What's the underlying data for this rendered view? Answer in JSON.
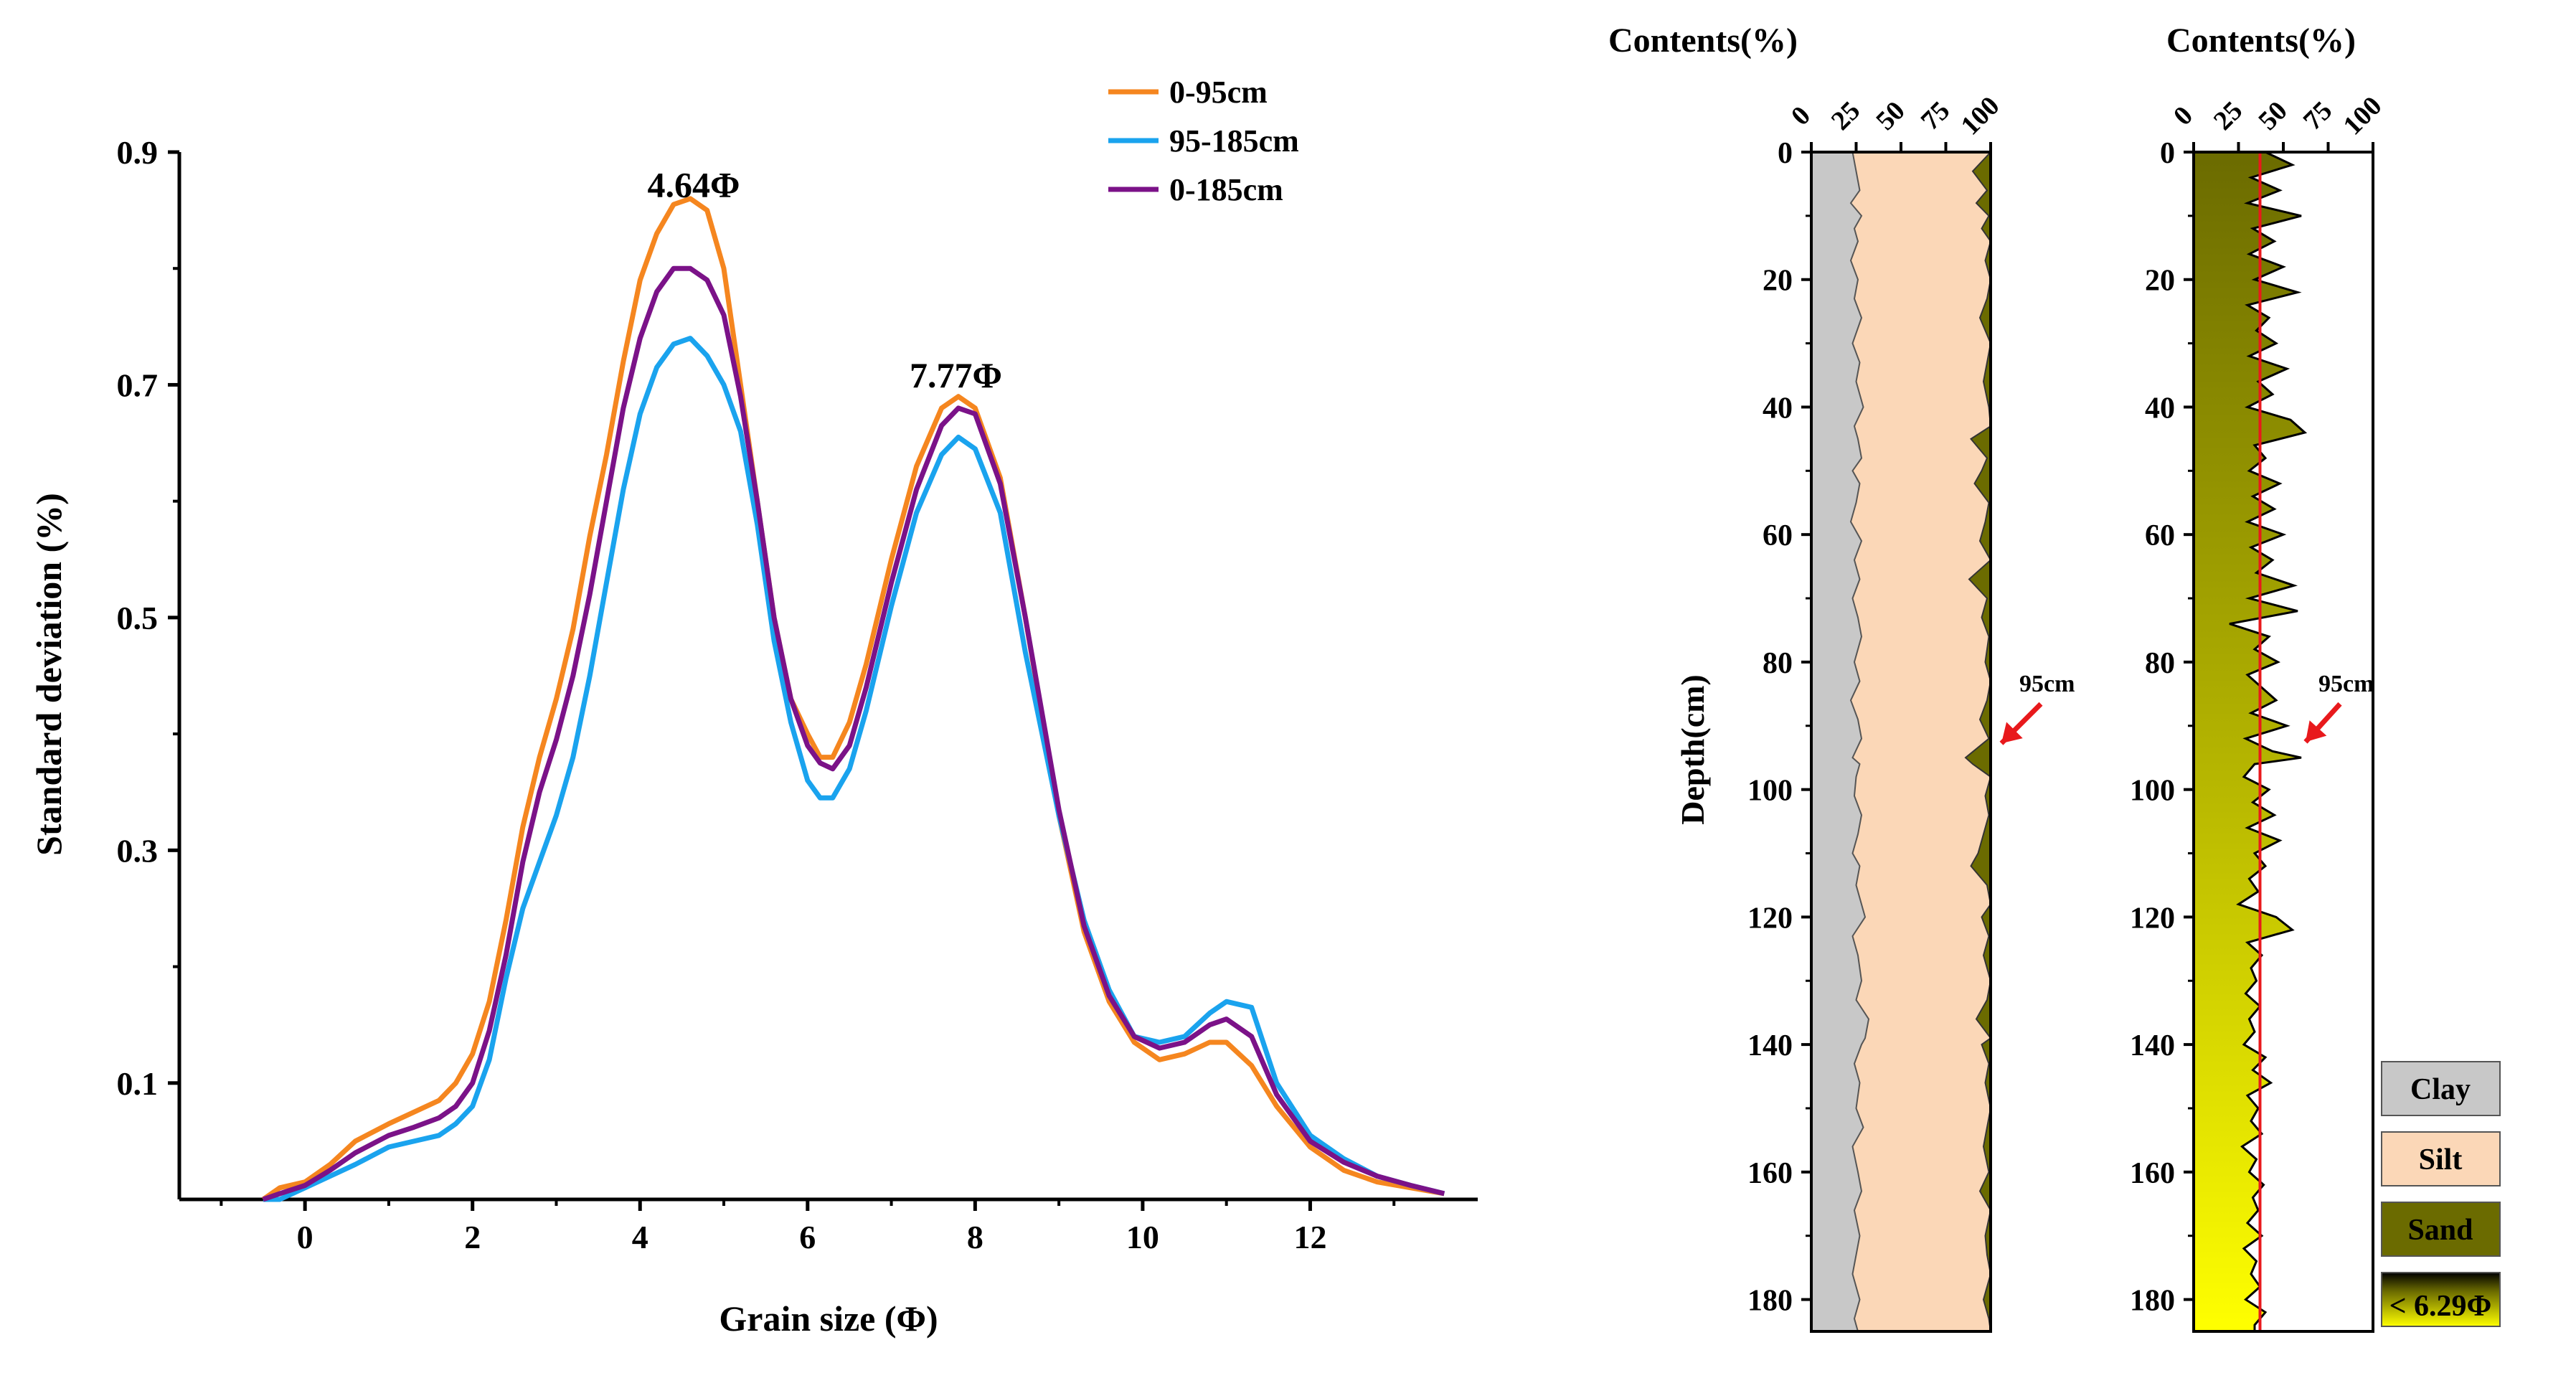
{
  "chart_data": [
    {
      "type": "line",
      "title": "",
      "xlabel": "Grain size (Φ)",
      "ylabel": "Standard deviation (%)",
      "xlim": [
        -1.5,
        14
      ],
      "ylim": [
        0,
        0.9
      ],
      "xticks": [
        0,
        2,
        4,
        6,
        8,
        10,
        12
      ],
      "yticks": [
        0.1,
        0.3,
        0.5,
        0.7,
        0.9
      ],
      "legend_position": "top-right",
      "annotations": [
        {
          "text": "4.64Φ",
          "x": 4.64,
          "y": 0.88
        },
        {
          "text": "7.77Φ",
          "x": 7.77,
          "y": 0.71
        }
      ],
      "x": [
        -0.5,
        -0.3,
        0,
        0.3,
        0.6,
        1.0,
        1.3,
        1.6,
        1.8,
        2.0,
        2.2,
        2.4,
        2.6,
        2.8,
        3.0,
        3.2,
        3.4,
        3.6,
        3.8,
        4.0,
        4.2,
        4.4,
        4.6,
        4.8,
        5.0,
        5.2,
        5.4,
        5.6,
        5.8,
        6.0,
        6.15,
        6.3,
        6.5,
        6.7,
        7.0,
        7.3,
        7.6,
        7.8,
        8.0,
        8.3,
        8.6,
        9.0,
        9.3,
        9.6,
        9.9,
        10.2,
        10.5,
        10.8,
        11.0,
        11.3,
        11.6,
        12.0,
        12.4,
        12.8,
        13.2,
        13.6
      ],
      "series": [
        {
          "name": "0-95cm",
          "color": "#f5861f",
          "values": [
            0.0,
            0.01,
            0.015,
            0.03,
            0.05,
            0.065,
            0.075,
            0.085,
            0.1,
            0.125,
            0.17,
            0.24,
            0.32,
            0.38,
            0.43,
            0.49,
            0.57,
            0.64,
            0.72,
            0.79,
            0.83,
            0.855,
            0.86,
            0.85,
            0.8,
            0.7,
            0.6,
            0.5,
            0.43,
            0.4,
            0.38,
            0.38,
            0.41,
            0.46,
            0.55,
            0.63,
            0.68,
            0.69,
            0.68,
            0.62,
            0.5,
            0.33,
            0.23,
            0.17,
            0.135,
            0.12,
            0.125,
            0.135,
            0.135,
            0.115,
            0.08,
            0.045,
            0.025,
            0.015,
            0.01,
            0.005
          ]
        },
        {
          "name": "95-185cm",
          "color": "#1aa3ee",
          "values": [
            0.0,
            0.0,
            0.01,
            0.02,
            0.03,
            0.045,
            0.05,
            0.055,
            0.065,
            0.08,
            0.12,
            0.19,
            0.25,
            0.29,
            0.33,
            0.38,
            0.45,
            0.53,
            0.61,
            0.675,
            0.715,
            0.735,
            0.74,
            0.725,
            0.7,
            0.66,
            0.58,
            0.48,
            0.41,
            0.36,
            0.345,
            0.345,
            0.37,
            0.42,
            0.51,
            0.59,
            0.64,
            0.655,
            0.645,
            0.59,
            0.47,
            0.33,
            0.24,
            0.18,
            0.14,
            0.135,
            0.14,
            0.16,
            0.17,
            0.165,
            0.1,
            0.055,
            0.035,
            0.02,
            0.012,
            0.005
          ]
        },
        {
          "name": "0-185cm",
          "color": "#7b1288",
          "values": [
            0.0,
            0.005,
            0.012,
            0.025,
            0.04,
            0.055,
            0.062,
            0.07,
            0.08,
            0.1,
            0.145,
            0.21,
            0.29,
            0.35,
            0.395,
            0.45,
            0.52,
            0.6,
            0.68,
            0.74,
            0.78,
            0.8,
            0.8,
            0.79,
            0.76,
            0.69,
            0.6,
            0.5,
            0.43,
            0.39,
            0.375,
            0.37,
            0.39,
            0.44,
            0.53,
            0.61,
            0.665,
            0.68,
            0.675,
            0.615,
            0.5,
            0.335,
            0.235,
            0.175,
            0.14,
            0.13,
            0.135,
            0.15,
            0.155,
            0.14,
            0.09,
            0.05,
            0.032,
            0.02,
            0.012,
            0.005
          ]
        }
      ]
    },
    {
      "type": "area",
      "title": "Contents(%)",
      "ylabel": "Depth(cm)",
      "xlim": [
        0,
        100
      ],
      "ylim": [
        0,
        185
      ],
      "xticks": [
        0,
        25,
        50,
        75,
        100
      ],
      "yticks": [
        0,
        20,
        40,
        60,
        80,
        100,
        120,
        140,
        160,
        180
      ],
      "stacking": [
        "Clay",
        "Silt",
        "Sand"
      ],
      "annotation": "95cm",
      "annotation_depth": 95,
      "depth": [
        0,
        3,
        6,
        8,
        10,
        12,
        14,
        17,
        20,
        23,
        26,
        30,
        33,
        36,
        40,
        43,
        45,
        48,
        50,
        52,
        55,
        58,
        61,
        64,
        67,
        70,
        73,
        76,
        80,
        83,
        86,
        89,
        92,
        95,
        96,
        98,
        101,
        104,
        107,
        110,
        112,
        115,
        118,
        120,
        123,
        126,
        130,
        133,
        136,
        139,
        140,
        143,
        146,
        150,
        153,
        156,
        160,
        163,
        166,
        170,
        173,
        176,
        180,
        183,
        185
      ],
      "clay_pct": [
        23,
        25,
        27,
        22,
        28,
        24,
        26,
        22,
        26,
        24,
        28,
        23,
        27,
        25,
        29,
        24,
        26,
        28,
        23,
        27,
        25,
        22,
        28,
        24,
        27,
        23,
        26,
        28,
        24,
        27,
        22,
        26,
        28,
        23,
        27,
        25,
        24,
        28,
        26,
        23,
        27,
        25,
        28,
        30,
        23,
        26,
        28,
        25,
        32,
        30,
        28,
        24,
        27,
        25,
        29,
        23,
        26,
        28,
        24,
        27,
        25,
        23,
        27,
        24,
        26
      ],
      "sand_pct": [
        0,
        10,
        2,
        8,
        1,
        5,
        0,
        3,
        0,
        2,
        6,
        0,
        2,
        4,
        1,
        0,
        11,
        2,
        5,
        9,
        1,
        3,
        6,
        0,
        12,
        2,
        5,
        1,
        3,
        0,
        2,
        6,
        1,
        14,
        10,
        0,
        3,
        1,
        4,
        7,
        11,
        2,
        0,
        5,
        1,
        4,
        0,
        2,
        8,
        0,
        5,
        1,
        3,
        0,
        2,
        4,
        1,
        6,
        0,
        3,
        2,
        0,
        4,
        1,
        0
      ]
    },
    {
      "type": "area",
      "title": "Contents(%)",
      "xlim": [
        0,
        100
      ],
      "ylim": [
        0,
        185
      ],
      "xticks": [
        0,
        25,
        50,
        75,
        100
      ],
      "yticks": [
        0,
        20,
        40,
        60,
        80,
        100,
        120,
        140,
        160,
        180
      ],
      "reference_line_pct": 37,
      "reference_line_color": "#e8191c",
      "annotation": "95cm",
      "annotation_depth": 95,
      "depth": [
        0,
        2,
        4,
        6,
        8,
        10,
        12,
        14,
        16,
        18,
        20,
        22,
        24,
        26,
        28,
        30,
        32,
        34,
        36,
        38,
        40,
        42,
        44,
        46,
        48,
        50,
        52,
        54,
        56,
        58,
        60,
        62,
        64,
        66,
        68,
        70,
        72,
        74,
        76,
        78,
        80,
        82,
        84,
        86,
        88,
        90,
        92,
        94,
        95,
        96,
        98,
        100,
        102,
        104,
        106,
        108,
        110,
        112,
        114,
        116,
        118,
        120,
        122,
        124,
        126,
        128,
        130,
        132,
        134,
        136,
        138,
        140,
        142,
        144,
        146,
        148,
        150,
        152,
        154,
        156,
        158,
        160,
        162,
        164,
        166,
        168,
        170,
        172,
        174,
        176,
        178,
        180,
        182,
        184
      ],
      "fine_fraction_pct": [
        40,
        55,
        32,
        48,
        30,
        60,
        33,
        45,
        31,
        50,
        34,
        58,
        30,
        42,
        35,
        46,
        31,
        52,
        36,
        44,
        30,
        54,
        62,
        34,
        40,
        31,
        48,
        33,
        45,
        30,
        50,
        32,
        44,
        35,
        56,
        31,
        58,
        20,
        42,
        34,
        47,
        30,
        38,
        46,
        32,
        52,
        29,
        44,
        60,
        34,
        28,
        42,
        33,
        45,
        30,
        48,
        34,
        40,
        31,
        36,
        25,
        46,
        55,
        30,
        38,
        32,
        35,
        29,
        37,
        31,
        34,
        28,
        40,
        33,
        43,
        30,
        36,
        32,
        38,
        27,
        35,
        31,
        39,
        33,
        36,
        30,
        38,
        28,
        35,
        32,
        37,
        29,
        40,
        34
      ]
    }
  ],
  "legend_right": [
    {
      "label": "Clay",
      "color": "#c8c8c8"
    },
    {
      "label": "Silt",
      "color": "#fbd7b7"
    },
    {
      "label": "Sand",
      "color": "#6b6b00"
    },
    {
      "label": "< 6.29Φ",
      "gradient": [
        "#000000",
        "#ffff00"
      ]
    }
  ]
}
